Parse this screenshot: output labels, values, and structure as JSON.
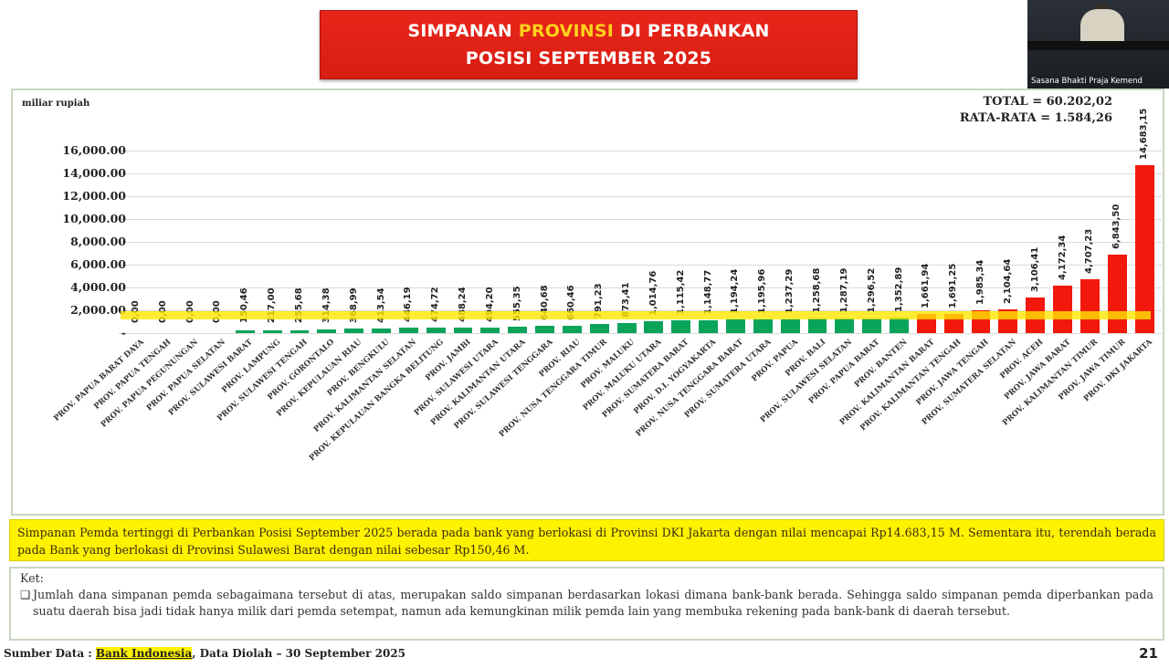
{
  "title": {
    "line1_pre": "SIMPANAN ",
    "line1_highlight": "PROVINSI",
    "line1_post": " DI PERBANKAN",
    "line2": "POSISI SEPTEMBER 2025"
  },
  "video": {
    "caption": "Sasana Bhakti Praja Kemend"
  },
  "chart": {
    "unit_label": "miliar rupiah",
    "total_label": "TOTAL = 60.202,02",
    "average_label": "RATA-RATA = 1.584,26"
  },
  "chart_data": {
    "type": "bar",
    "title": "SIMPANAN PROVINSI DI PERBANKAN POSISI SEPTEMBER 2025",
    "ylabel": "miliar rupiah",
    "xlabel": "",
    "ylim": [
      0,
      16000
    ],
    "yticks": [
      "-",
      "2,000.00",
      "4,000.00",
      "6,000.00",
      "8,000.00",
      "10,000.00",
      "12,000.00",
      "14,000.00",
      "16,000.00"
    ],
    "grid": true,
    "total": "60.202,02",
    "average": 1584.26,
    "average_line_color": "#ffe600",
    "categories": [
      "PROV. PAPUA BARAT DAYA",
      "PROV. PAPUA TENGAH",
      "PROV. PAPUA PEGUNUNGAN",
      "PROV. PAPUA SELATAN",
      "PROV. SULAWESI BARAT",
      "PROV. LAMPUNG",
      "PROV. SULAWESI TENGAH",
      "PROV. GORONTALO",
      "PROV. KEPULAUAN RIAU",
      "PROV. BENGKULU",
      "PROV. KALIMANTAN SELATAN",
      "PROV. KEPULAUAN BANGKA BELITUNG",
      "PROV. JAMBI",
      "PROV. SULAWESI UTARA",
      "PROV. KALIMANTAN UTARA",
      "PROV. SULAWESI TENGGARA",
      "PROV. RIAU",
      "PROV. NUSA TENGGARA TIMUR",
      "PROV. MALUKU",
      "PROV. MALUKU UTARA",
      "PROV. SUMATERA BARAT",
      "PROV. D.I. YOGYAKARTA",
      "PROV. NUSA TENGGARA BARAT",
      "PROV. SUMATERA UTARA",
      "PROV. PAPUA",
      "PROV. BALI",
      "PROV. SULAWESI SELATAN",
      "PROV. PAPUA BARAT",
      "PROV. BANTEN",
      "PROV. KALIMANTAN BARAT",
      "PROV. KALIMANTAN TENGAH",
      "PROV. JAWA TENGAH",
      "PROV. SUMATERA SELATAN",
      "PROV. ACEH",
      "PROV. JAWA BARAT",
      "PROV. KALIMANTAN TIMUR",
      "PROV. JAWA TIMUR",
      "PROV. DKI JAKARTA"
    ],
    "values": [
      0.0,
      0.0,
      0.0,
      0.0,
      150.46,
      217.0,
      255.68,
      314.38,
      368.99,
      413.54,
      446.19,
      474.72,
      488.24,
      494.2,
      555.35,
      640.68,
      660.46,
      791.23,
      873.41,
      1014.76,
      1115.42,
      1148.77,
      1194.24,
      1195.96,
      1237.29,
      1258.68,
      1287.19,
      1296.52,
      1352.89,
      1661.94,
      1691.25,
      1985.34,
      2104.64,
      3106.41,
      4172.34,
      4707.23,
      6843.5,
      14683.15
    ],
    "value_labels": [
      "0,00",
      "0,00",
      "0,00",
      "0,00",
      "150,46",
      "217,00",
      "255,68",
      "314,38",
      "368,99",
      "413,54",
      "446,19",
      "474,72",
      "488,24",
      "494,20",
      "555,35",
      "640,68",
      "660,46",
      "791,23",
      "873,41",
      "1,014,76",
      "1,115,42",
      "1,148,77",
      "1,194,24",
      "1,195,96",
      "1,237,29",
      "1,258,68",
      "1,287,19",
      "1,296,52",
      "1,352,89",
      "1,661,94",
      "1,691,25",
      "1,985,34",
      "2,104,64",
      "3,106,41",
      "4,172,34",
      "4,707,23",
      "6,843,50",
      "14,683,15"
    ],
    "colors": {
      "below_average": "#0aa35a",
      "above_average": "#f2180c"
    }
  },
  "summary_text": "Simpanan Pemda tertinggi di Perbankan Posisi September 2025 berada pada bank yang berlokasi di Provinsi DKI Jakarta dengan nilai mencapai Rp14.683,15 M. Sementara itu, terendah berada pada Bank yang berlokasi di Provinsi Sulawesi Barat dengan nilai sebesar Rp150,46 M.",
  "note": {
    "heading": "Ket:",
    "bullet_icon": "❑",
    "text": "Jumlah dana simpanan pemda sebagaimana tersebut di atas, merupakan saldo simpanan berdasarkan lokasi dimana bank-bank berada. Sehingga saldo simpanan pemda diperbankan pada suatu daerah bisa jadi tidak hanya milik dari pemda setempat, namun ada kemungkinan milik pemda lain yang membuka rekening pada bank-bank di daerah tersebut."
  },
  "footer": {
    "source_prefix": "Sumber Data : ",
    "source_highlight": "Bank Indonesia",
    "source_suffix": ", Data Diolah – 30 September 2025",
    "page_number": "21"
  }
}
